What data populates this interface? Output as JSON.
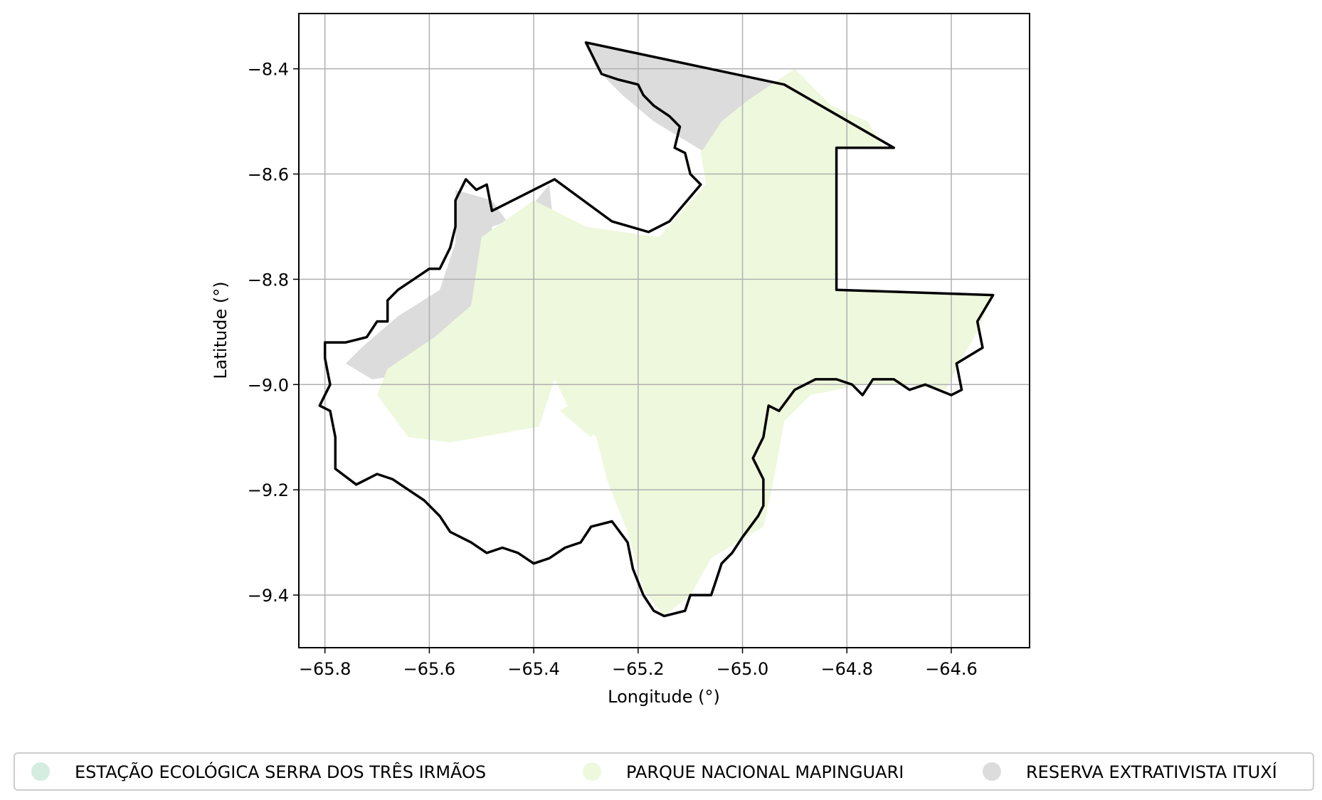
{
  "chart_data": {
    "type": "map",
    "xlabel": "Longitude (°)",
    "ylabel": "Latitude (°)",
    "xlim": [
      -65.85,
      -64.45
    ],
    "ylim": [
      -9.5,
      -8.295
    ],
    "xticks": [
      -65.8,
      -65.6,
      -65.4,
      -65.2,
      -65.0,
      -64.8,
      -64.6
    ],
    "xtick_labels": [
      "−65.8",
      "−65.6",
      "−65.4",
      "−65.2",
      "−65.0",
      "−64.8",
      "−64.6"
    ],
    "yticks": [
      -8.4,
      -8.6,
      -8.8,
      -9.0,
      -9.2,
      -9.4
    ],
    "ytick_labels": [
      "−8.4",
      "−8.6",
      "−8.8",
      "−9.0",
      "−9.2",
      "−9.4"
    ],
    "grid": true,
    "legend_position": "bottom",
    "legend": [
      {
        "label": "ESTAÇÃO ECOLÓGICA SERRA DOS TRÊS IRMÃOS",
        "color": "#d5ede0"
      },
      {
        "label": "PARQUE NACIONAL MAPINGUARI",
        "color": "#eef8dc"
      },
      {
        "label": "RESERVA EXTRATIVISTA ITUXÍ",
        "color": "#dcdcdc"
      }
    ],
    "colors": {
      "parque": "#eef8dc",
      "reserva": "#dcdcdc",
      "boundary": "#000000",
      "grid": "#b0b0b0"
    },
    "regions": {
      "parque": [
        [
          [
            -64.9,
            -8.4
          ],
          [
            -64.83,
            -8.47
          ],
          [
            -64.76,
            -8.5
          ],
          [
            -64.73,
            -8.55
          ],
          [
            -64.82,
            -8.55
          ],
          [
            -64.82,
            -8.82
          ],
          [
            -64.52,
            -8.83
          ],
          [
            -64.55,
            -8.9
          ],
          [
            -64.58,
            -8.95
          ],
          [
            -64.61,
            -9.01
          ],
          [
            -64.69,
            -9.0
          ],
          [
            -64.77,
            -9.0
          ],
          [
            -64.87,
            -9.02
          ],
          [
            -64.92,
            -9.07
          ],
          [
            -64.94,
            -9.18
          ],
          [
            -64.96,
            -9.27
          ],
          [
            -65.06,
            -9.33
          ],
          [
            -65.1,
            -9.4
          ],
          [
            -65.15,
            -9.44
          ],
          [
            -65.19,
            -9.39
          ],
          [
            -65.22,
            -9.28
          ],
          [
            -65.26,
            -9.18
          ],
          [
            -65.28,
            -9.1
          ],
          [
            -65.33,
            -9.05
          ],
          [
            -65.36,
            -8.99
          ],
          [
            -65.39,
            -9.08
          ],
          [
            -65.56,
            -9.11
          ],
          [
            -65.64,
            -9.1
          ],
          [
            -65.7,
            -9.02
          ],
          [
            -65.68,
            -8.97
          ],
          [
            -65.59,
            -8.91
          ],
          [
            -65.52,
            -8.85
          ],
          [
            -65.5,
            -8.72
          ],
          [
            -65.4,
            -8.65
          ],
          [
            -65.3,
            -8.7
          ],
          [
            -65.16,
            -8.72
          ],
          [
            -65.07,
            -8.62
          ],
          [
            -65.08,
            -8.56
          ],
          [
            -65.04,
            -8.5
          ],
          [
            -64.99,
            -8.46
          ]
        ],
        [
          [
            -65.29,
            -9.1
          ],
          [
            -65.35,
            -9.05
          ],
          [
            -65.3,
            -9.02
          ],
          [
            -65.27,
            -9.07
          ]
        ]
      ],
      "reserva": [
        [
          [
            -65.3,
            -8.35
          ],
          [
            -64.92,
            -8.43
          ],
          [
            -64.88,
            -8.49
          ],
          [
            -64.9,
            -8.52
          ],
          [
            -65.0,
            -8.5
          ],
          [
            -65.07,
            -8.56
          ],
          [
            -65.17,
            -8.5
          ],
          [
            -65.23,
            -8.45
          ],
          [
            -65.28,
            -8.4
          ]
        ],
        [
          [
            -65.37,
            -8.62
          ],
          [
            -65.36,
            -8.72
          ],
          [
            -65.43,
            -8.72
          ],
          [
            -65.48,
            -8.65
          ],
          [
            -65.55,
            -8.63
          ],
          [
            -65.55,
            -8.73
          ],
          [
            -65.58,
            -8.82
          ],
          [
            -65.66,
            -8.87
          ],
          [
            -65.73,
            -8.93
          ],
          [
            -65.76,
            -8.96
          ],
          [
            -65.71,
            -8.99
          ],
          [
            -65.63,
            -8.98
          ],
          [
            -65.59,
            -8.92
          ],
          [
            -65.5,
            -8.88
          ],
          [
            -65.48,
            -8.8
          ],
          [
            -65.48,
            -8.7
          ],
          [
            -65.42,
            -8.68
          ]
        ]
      ]
    },
    "boundary": [
      [
        -65.3,
        -8.35
      ],
      [
        -64.92,
        -8.43
      ],
      [
        -64.71,
        -8.55
      ],
      [
        -64.82,
        -8.55
      ],
      [
        -64.82,
        -8.82
      ],
      [
        -64.52,
        -8.83
      ],
      [
        -64.55,
        -8.88
      ],
      [
        -64.54,
        -8.93
      ],
      [
        -64.59,
        -8.96
      ],
      [
        -64.58,
        -9.01
      ],
      [
        -64.6,
        -9.02
      ],
      [
        -64.65,
        -9.0
      ],
      [
        -64.68,
        -9.01
      ],
      [
        -64.71,
        -8.99
      ],
      [
        -64.75,
        -8.99
      ],
      [
        -64.77,
        -9.02
      ],
      [
        -64.79,
        -9.0
      ],
      [
        -64.82,
        -8.99
      ],
      [
        -64.86,
        -8.99
      ],
      [
        -64.9,
        -9.01
      ],
      [
        -64.93,
        -9.05
      ],
      [
        -64.95,
        -9.04
      ],
      [
        -64.96,
        -9.1
      ],
      [
        -64.98,
        -9.14
      ],
      [
        -64.96,
        -9.18
      ],
      [
        -64.96,
        -9.23
      ],
      [
        -64.97,
        -9.25
      ],
      [
        -65.0,
        -9.29
      ],
      [
        -65.02,
        -9.32
      ],
      [
        -65.04,
        -9.34
      ],
      [
        -65.05,
        -9.37
      ],
      [
        -65.06,
        -9.4
      ],
      [
        -65.1,
        -9.4
      ],
      [
        -65.11,
        -9.43
      ],
      [
        -65.15,
        -9.44
      ],
      [
        -65.17,
        -9.43
      ],
      [
        -65.19,
        -9.4
      ],
      [
        -65.21,
        -9.35
      ],
      [
        -65.22,
        -9.3
      ],
      [
        -65.25,
        -9.26
      ],
      [
        -65.29,
        -9.27
      ],
      [
        -65.31,
        -9.3
      ],
      [
        -65.34,
        -9.31
      ],
      [
        -65.37,
        -9.33
      ],
      [
        -65.4,
        -9.34
      ],
      [
        -65.43,
        -9.32
      ],
      [
        -65.46,
        -9.31
      ],
      [
        -65.49,
        -9.32
      ],
      [
        -65.52,
        -9.3
      ],
      [
        -65.56,
        -9.28
      ],
      [
        -65.58,
        -9.25
      ],
      [
        -65.61,
        -9.22
      ],
      [
        -65.64,
        -9.2
      ],
      [
        -65.67,
        -9.18
      ],
      [
        -65.7,
        -9.17
      ],
      [
        -65.74,
        -9.19
      ],
      [
        -65.78,
        -9.16
      ],
      [
        -65.78,
        -9.1
      ],
      [
        -65.79,
        -9.05
      ],
      [
        -65.81,
        -9.04
      ],
      [
        -65.79,
        -9.0
      ],
      [
        -65.8,
        -8.95
      ],
      [
        -65.8,
        -8.92
      ],
      [
        -65.76,
        -8.92
      ],
      [
        -65.72,
        -8.91
      ],
      [
        -65.7,
        -8.88
      ],
      [
        -65.68,
        -8.88
      ],
      [
        -65.68,
        -8.84
      ],
      [
        -65.66,
        -8.82
      ],
      [
        -65.63,
        -8.8
      ],
      [
        -65.6,
        -8.78
      ],
      [
        -65.58,
        -8.78
      ],
      [
        -65.56,
        -8.74
      ],
      [
        -65.55,
        -8.7
      ],
      [
        -65.55,
        -8.65
      ],
      [
        -65.53,
        -8.61
      ],
      [
        -65.51,
        -8.63
      ],
      [
        -65.49,
        -8.62
      ],
      [
        -65.48,
        -8.67
      ],
      [
        -65.36,
        -8.61
      ],
      [
        -65.25,
        -8.69
      ],
      [
        -65.18,
        -8.71
      ],
      [
        -65.14,
        -8.69
      ],
      [
        -65.08,
        -8.62
      ],
      [
        -65.1,
        -8.6
      ],
      [
        -65.11,
        -8.56
      ],
      [
        -65.13,
        -8.55
      ],
      [
        -65.12,
        -8.51
      ],
      [
        -65.14,
        -8.49
      ],
      [
        -65.17,
        -8.47
      ],
      [
        -65.19,
        -8.45
      ],
      [
        -65.2,
        -8.43
      ],
      [
        -65.24,
        -8.42
      ],
      [
        -65.27,
        -8.41
      ],
      [
        -65.29,
        -8.37
      ]
    ]
  }
}
